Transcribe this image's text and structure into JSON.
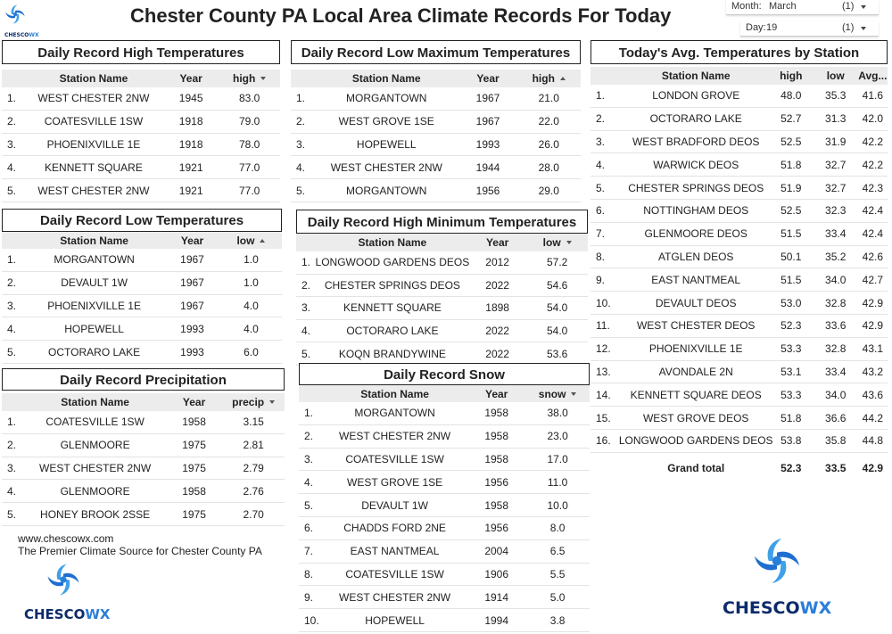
{
  "header": {
    "title": "Chester County PA Local Area Climate Records For Today"
  },
  "filters": [
    {
      "label": "Month:",
      "value": "March",
      "count": "(1)"
    },
    {
      "label": "Day:",
      "value": "19",
      "count": "(1)"
    }
  ],
  "tables": [
    {
      "title": "Daily Record High Temperatures",
      "columns": [
        "Station Name",
        "Year",
        "high"
      ],
      "sort": "desc",
      "rows": [
        [
          "1.",
          "WEST CHESTER 2NW",
          "1945",
          "83.0"
        ],
        [
          "2.",
          "COATESVILLE 1SW",
          "1918",
          "79.0"
        ],
        [
          "3.",
          "PHOENIXVILLE 1E",
          "1918",
          "78.0"
        ],
        [
          "4.",
          "KENNETT SQUARE",
          "1921",
          "77.0"
        ],
        [
          "5.",
          "WEST CHESTER 2NW",
          "1921",
          "77.0"
        ]
      ]
    },
    {
      "title": "Daily Record Low Maximum Temperatures",
      "columns": [
        "Station Name",
        "Year",
        "high"
      ],
      "sort": "asc",
      "rows": [
        [
          "1.",
          "MORGANTOWN",
          "1967",
          "21.0"
        ],
        [
          "2.",
          "WEST GROVE 1SE",
          "1967",
          "22.0"
        ],
        [
          "3.",
          "HOPEWELL",
          "1993",
          "26.0"
        ],
        [
          "4.",
          "WEST CHESTER 2NW",
          "1944",
          "28.0"
        ],
        [
          "5.",
          "MORGANTOWN",
          "1956",
          "29.0"
        ]
      ]
    },
    {
      "title": "Today's Avg. Temperatures by Station",
      "columns": [
        "Station Name",
        "high",
        "low",
        "Avg..."
      ],
      "rows": [
        [
          "1.",
          "LONDON GROVE",
          "48.0",
          "35.3",
          "41.6"
        ],
        [
          "2.",
          "OCTORARO LAKE",
          "52.7",
          "31.3",
          "42.0"
        ],
        [
          "3.",
          "WEST BRADFORD DEOS",
          "52.5",
          "31.9",
          "42.2"
        ],
        [
          "4.",
          "WARWICK DEOS",
          "51.8",
          "32.7",
          "42.2"
        ],
        [
          "5.",
          "CHESTER SPRINGS DEOS",
          "51.9",
          "32.7",
          "42.3"
        ],
        [
          "6.",
          "NOTTINGHAM DEOS",
          "52.5",
          "32.3",
          "42.4"
        ],
        [
          "7.",
          "GLENMOORE DEOS",
          "51.5",
          "33.4",
          "42.4"
        ],
        [
          "8.",
          "ATGLEN DEOS",
          "50.1",
          "35.2",
          "42.6"
        ],
        [
          "9.",
          "EAST NANTMEAL",
          "51.5",
          "34.0",
          "42.7"
        ],
        [
          "10.",
          "DEVAULT DEOS",
          "53.0",
          "32.8",
          "42.9"
        ],
        [
          "11.",
          "WEST CHESTER DEOS",
          "52.3",
          "33.6",
          "42.9"
        ],
        [
          "12.",
          "PHOENIXVILLE 1E",
          "53.3",
          "32.8",
          "43.1"
        ],
        [
          "13.",
          "AVONDALE 2N",
          "53.1",
          "33.4",
          "43.2"
        ],
        [
          "14.",
          "KENNETT SQUARE DEOS",
          "53.3",
          "34.0",
          "43.6"
        ],
        [
          "15.",
          "WEST GROVE DEOS",
          "51.8",
          "36.6",
          "44.2"
        ],
        [
          "16.",
          "LONGWOOD GARDENS DEOS",
          "53.8",
          "35.8",
          "44.8"
        ]
      ],
      "total": [
        "Grand total",
        "52.3",
        "33.5",
        "42.9"
      ]
    },
    {
      "title": "Daily Record Low Temperatures",
      "columns": [
        "Station Name",
        "Year",
        "low"
      ],
      "sort": "asc",
      "rows": [
        [
          "1.",
          "MORGANTOWN",
          "1967",
          "1.0"
        ],
        [
          "2.",
          "DEVAULT 1W",
          "1967",
          "1.0"
        ],
        [
          "3.",
          "PHOENIXVILLE 1E",
          "1967",
          "4.0"
        ],
        [
          "4.",
          "HOPEWELL",
          "1993",
          "4.0"
        ],
        [
          "5.",
          "OCTORARO LAKE",
          "1993",
          "6.0"
        ]
      ]
    },
    {
      "title": "Daily Record High Minimum Temperatures",
      "columns": [
        "Station Name",
        "Year",
        "low"
      ],
      "sort": "desc",
      "rows": [
        [
          "1.",
          "LONGWOOD GARDENS DEOS",
          "2012",
          "57.2"
        ],
        [
          "2.",
          "CHESTER SPRINGS DEOS",
          "2022",
          "54.6"
        ],
        [
          "3.",
          "KENNETT SQUARE",
          "1898",
          "54.0"
        ],
        [
          "4.",
          "OCTORARO LAKE",
          "2022",
          "54.0"
        ],
        [
          "5.",
          "KOQN BRANDYWINE",
          "2022",
          "53.6"
        ]
      ]
    },
    {
      "title": "Daily Record Precipitation",
      "columns": [
        "Station Name",
        "Year",
        "precip"
      ],
      "sort": "desc",
      "rows": [
        [
          "1.",
          "COATESVILLE 1SW",
          "1958",
          "3.15"
        ],
        [
          "2.",
          "GLENMOORE",
          "1975",
          "2.81"
        ],
        [
          "3.",
          "WEST CHESTER 2NW",
          "1975",
          "2.79"
        ],
        [
          "4.",
          "GLENMOORE",
          "1958",
          "2.76"
        ],
        [
          "5.",
          "HONEY BROOK 2SSE",
          "1975",
          "2.70"
        ]
      ]
    },
    {
      "title": "Daily Record Snow",
      "columns": [
        "Station Name",
        "Year",
        "snow"
      ],
      "sort": "desc",
      "rows": [
        [
          "1.",
          "MORGANTOWN",
          "1958",
          "38.0"
        ],
        [
          "2.",
          "WEST CHESTER 2NW",
          "1958",
          "23.0"
        ],
        [
          "3.",
          "COATESVILLE 1SW",
          "1958",
          "17.0"
        ],
        [
          "4.",
          "WEST GROVE 1SE",
          "1956",
          "11.0"
        ],
        [
          "5.",
          "DEVAULT 1W",
          "1958",
          "10.0"
        ],
        [
          "6.",
          "CHADDS FORD 2NE",
          "1956",
          "8.0"
        ],
        [
          "7.",
          "EAST NANTMEAL",
          "2004",
          "6.5"
        ],
        [
          "8.",
          "COATESVILLE 1SW",
          "1906",
          "5.5"
        ],
        [
          "9.",
          "WEST CHESTER 2NW",
          "1914",
          "5.0"
        ],
        [
          "10.",
          "HOPEWELL",
          "1994",
          "3.8"
        ]
      ]
    }
  ],
  "footer": {
    "url": "www.chescowx.com",
    "tagline": "The Premier Climate Source for Chester County PA"
  },
  "logos": [
    {
      "part1": "CHESCO",
      "part2": "WX"
    },
    {
      "part1": "CHESCO",
      "part2": "WX"
    },
    {
      "part1": "CHESCO",
      "part2": "WX"
    }
  ]
}
